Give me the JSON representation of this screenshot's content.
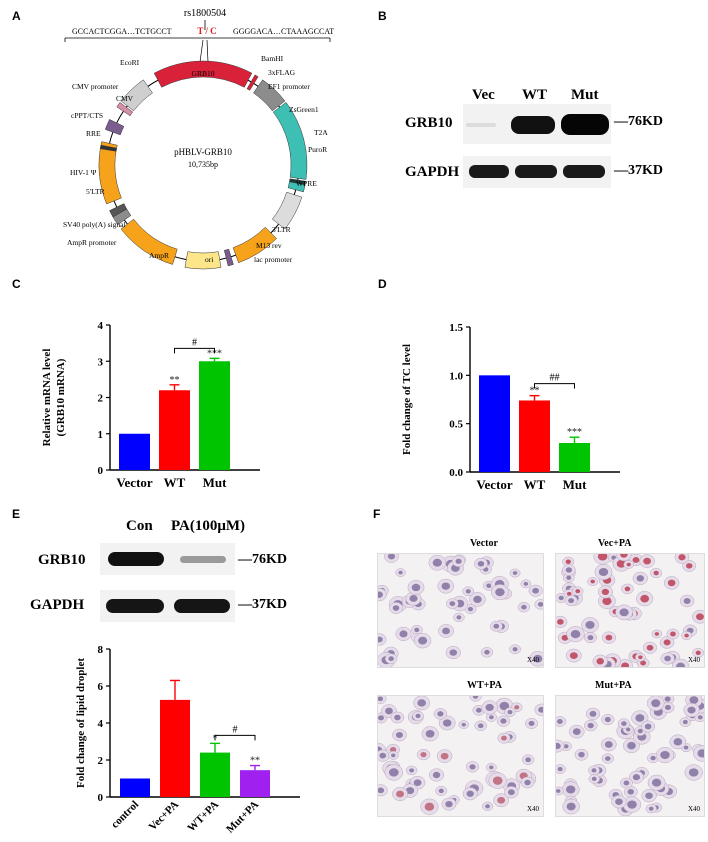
{
  "panels": {
    "a": "A",
    "b": "B",
    "c": "C",
    "d": "D",
    "e": "E",
    "f": "F"
  },
  "plasmid": {
    "snp_id": "rs1800504",
    "seq_left": "GCCACTCGGA…TCTGCCT",
    "seq_allele": "T / C",
    "seq_right": "GGGGACA…CTAAAGCCAT",
    "name": "pHBLV-GRB10",
    "size": "10,735bp",
    "features": {
      "ecori": "EcoRI",
      "cmv_promoter": "CMV promoter",
      "cmv": "CMV",
      "cppt": "cPPT/CTS",
      "rre": "RRE",
      "hiv": "HIV-1 Ψ",
      "ltr5": "5'LTR",
      "sv40": "SV40 poly(A) signal",
      "ampr_promoter": "AmpR promoter",
      "ampr": "AmpR",
      "ori": "ori",
      "lac": "lac promoter",
      "m13": "M13 rev",
      "ltr3": "3'LTR",
      "wpre": "WPRE",
      "puror": "PuroR",
      "t2a": "T2A",
      "zsgreen": "ZsGreen1",
      "ef1": "EF1 promoter",
      "flag": "3xFLAG",
      "bamhi": "BamHI",
      "grb10": "GRB10"
    },
    "colors": {
      "grb10": "#d9213a",
      "zsgreen": "#3ebfb3",
      "wpre": "#dcdcdc",
      "orange": "#f7a21b",
      "ori": "#fde58a",
      "gray": "#8c8c8c",
      "purple": "#7a5c8e",
      "pink": "#d68fa6",
      "lightgray": "#cfcfcf"
    }
  },
  "blot_b": {
    "lanes": [
      "Vec",
      "WT",
      "Mut"
    ],
    "rows": [
      "GRB10",
      "GAPDH"
    ],
    "markers": [
      "76KD",
      "37KD"
    ]
  },
  "blot_e": {
    "lanes": [
      "Con",
      "PA(100μM)"
    ],
    "rows": [
      "GRB10",
      "GAPDH"
    ],
    "markers": [
      "76KD",
      "37KD"
    ]
  },
  "chart_data": [
    {
      "id": "C",
      "type": "bar",
      "categories": [
        "Vector",
        "WT",
        "Mut"
      ],
      "values": [
        1.0,
        2.2,
        3.0
      ],
      "errors": [
        0,
        0.15,
        0.08
      ],
      "colors": [
        "#0000ff",
        "#ff0000",
        "#00c400"
      ],
      "significance": [
        "",
        "**",
        "***"
      ],
      "bracket": {
        "from": 1,
        "to": 2,
        "label": "#"
      },
      "ylabel": "Relative mRNA level",
      "ylabel2": "(GRB10 mRNA)",
      "ylim": [
        0,
        4
      ],
      "yticks": [
        0,
        1,
        2,
        3,
        4
      ]
    },
    {
      "id": "D",
      "type": "bar",
      "categories": [
        "Vector",
        "WT",
        "Mut"
      ],
      "values": [
        1.0,
        0.74,
        0.3
      ],
      "errors": [
        0,
        0.05,
        0.06
      ],
      "colors": [
        "#0000ff",
        "#ff0000",
        "#00c400"
      ],
      "significance": [
        "",
        "**",
        "***"
      ],
      "bracket": {
        "from": 1,
        "to": 2,
        "label": "##"
      },
      "ylabel": "Fold change of TC level",
      "ylim": [
        0,
        1.5
      ],
      "yticks": [
        "0.0",
        "0.5",
        "1.0",
        "1.5"
      ]
    },
    {
      "id": "E",
      "type": "bar",
      "categories": [
        "control",
        "Vec+PA",
        "WT+PA",
        "Mut+PA"
      ],
      "values": [
        1.0,
        5.25,
        2.4,
        1.45
      ],
      "errors": [
        0,
        1.05,
        0.5,
        0.25
      ],
      "colors": [
        "#0000ff",
        "#ff0000",
        "#00c400",
        "#a020f0"
      ],
      "significance": [
        "",
        "",
        "*",
        "**"
      ],
      "bracket": {
        "from": 2,
        "to": 3,
        "label": "#"
      },
      "ylabel": "Fold change of lipid droplet",
      "ylim": [
        0,
        8
      ],
      "yticks": [
        0,
        2,
        4,
        6,
        8
      ]
    }
  ],
  "micrographs": {
    "titles": [
      "Vector",
      "Vec+PA",
      "WT+PA",
      "Mut+PA"
    ],
    "magnification": "X40"
  }
}
